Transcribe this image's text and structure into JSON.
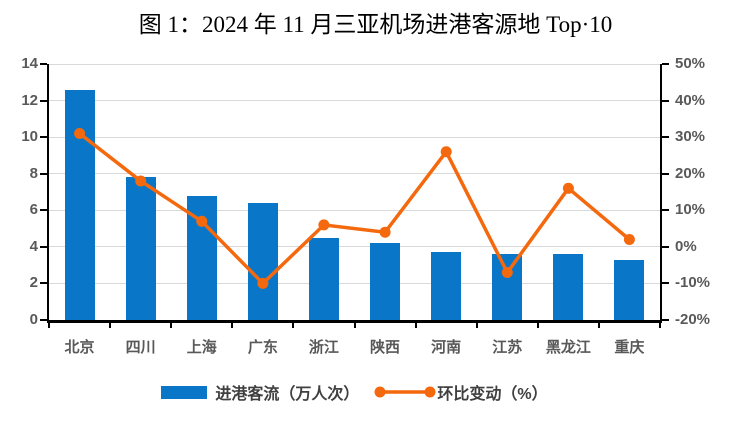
{
  "title": "图 1：2024 年 11 月三亚机场进港客源地 Top·10",
  "colors": {
    "bar": "#0A76C8",
    "line": "#F4690E",
    "gridline": "#D9D9D9",
    "axis": "#000000",
    "axis_labels": "#595959",
    "legend_text": "#404040",
    "background": "#FFFFFF",
    "title_text": "#000000"
  },
  "chart_data": {
    "type": "combo-bar-line",
    "title": "图 1：2024 年 11 月三亚机场进港客源地 Top·10",
    "categories": [
      "北京",
      "四川",
      "上海",
      "广东",
      "浙江",
      "陕西",
      "河南",
      "江苏",
      "黑龙江",
      "重庆"
    ],
    "series": [
      {
        "name": "进港客流（万人次）",
        "type": "bar",
        "axis": "left",
        "values": [
          12.6,
          7.8,
          6.8,
          6.4,
          4.5,
          4.2,
          3.7,
          3.6,
          3.6,
          3.3
        ]
      },
      {
        "name": "环比变动（%）",
        "type": "line",
        "axis": "right",
        "values": [
          31,
          18,
          7,
          -10,
          6,
          4,
          26,
          -7,
          16,
          2
        ]
      }
    ],
    "left_axis": {
      "min": 0,
      "max": 14,
      "step": 2,
      "ticks": [
        "0",
        "2",
        "4",
        "6",
        "8",
        "10",
        "12",
        "14"
      ]
    },
    "right_axis": {
      "min": -20,
      "max": 50,
      "step": 10,
      "ticks": [
        "-20%",
        "-10%",
        "0%",
        "10%",
        "20%",
        "30%",
        "40%",
        "50%"
      ]
    },
    "grid": true,
    "legend_position": "bottom"
  }
}
